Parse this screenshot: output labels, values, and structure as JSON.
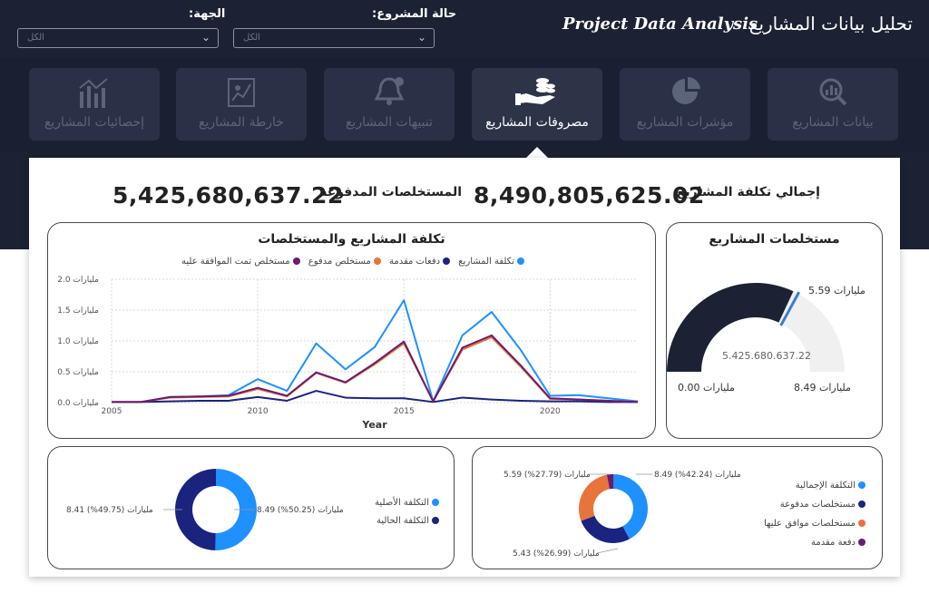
{
  "header": {
    "title_ar": "تحليل بيانات المشاريع",
    "title_en": "Project Data Analysis",
    "filters": [
      {
        "label": "حالة المشروع:",
        "value": "الكل"
      },
      {
        "label": "الجهة:",
        "value": "الكل"
      }
    ]
  },
  "nav": {
    "items": [
      {
        "label": "بيانات المشاريع",
        "icon": "magnifier-chart-icon",
        "active": false
      },
      {
        "label": "مؤشرات المشاريع",
        "icon": "pie-chart-icon",
        "active": false
      },
      {
        "label": "مصروفات المشاريع",
        "icon": "hand-coins-icon",
        "active": true
      },
      {
        "label": "تنبيهات المشاريع",
        "icon": "bell-icon",
        "active": false
      },
      {
        "label": "خارطة المشاريع",
        "icon": "map-icon",
        "active": false
      },
      {
        "label": "إحصائيات المشاريع",
        "icon": "statistics-icon",
        "active": false
      }
    ]
  },
  "kpis": {
    "total_cost_label": "إجمالي تكلفة المشاريع",
    "total_cost_value": "8,490,805,625.02",
    "paid_label": "المستخلصات المدفوعة",
    "paid_value": "5,425,680,637.22"
  },
  "line_card": {
    "title": "تكلفة المشاريع والمستخلصات"
  },
  "gauge_card": {
    "title": "مستخلصات المشاريع",
    "value_text": "5.425.680.637.22",
    "min_label": "0.00 مليارات",
    "max_label": "8.49 مليارات",
    "target_label": "5.59 مليارات"
  },
  "colors": {
    "cost": "#1e90ff",
    "advance": "#1a237e",
    "paid": "#e8743b",
    "approved": "#6a1b6e",
    "dark": "#1c2234"
  },
  "chart_data": [
    {
      "type": "line",
      "title": "تكلفة المشاريع والمستخلصات",
      "xlabel": "Year",
      "ylabel": "",
      "x": [
        2005,
        2006,
        2007,
        2008,
        2009,
        2010,
        2011,
        2012,
        2013,
        2014,
        2015,
        2016,
        2017,
        2018,
        2019,
        2020,
        2021,
        2022,
        2023
      ],
      "xticks": [
        "2005",
        "2010",
        "2015",
        "2020"
      ],
      "yticks": [
        "0.0 مليارات",
        "0.5 مليارات",
        "1.0 مليارات",
        "1.5 مليارات",
        "2.0 مليارات"
      ],
      "ylim": [
        0,
        2.0
      ],
      "grid": true,
      "legend_position": "top",
      "series": [
        {
          "name": "تكلفة المشاريع",
          "color": "#1e90ff",
          "values": [
            0.01,
            0.01,
            0.09,
            0.1,
            0.12,
            0.38,
            0.19,
            0.96,
            0.54,
            0.9,
            1.66,
            0.02,
            1.09,
            1.47,
            0.85,
            0.11,
            0.12,
            0.07,
            0.02
          ]
        },
        {
          "name": "دفعات مقدمة",
          "color": "#1a237e",
          "values": [
            0.01,
            0.01,
            0.02,
            0.03,
            0.03,
            0.09,
            0.03,
            0.19,
            0.08,
            0.07,
            0.07,
            0.01,
            0.08,
            0.05,
            0.03,
            0.02,
            0.02,
            0.01,
            0.01
          ]
        },
        {
          "name": "مستخلص مدفوع",
          "color": "#e8743b",
          "values": [
            0.01,
            0.01,
            0.08,
            0.09,
            0.1,
            0.22,
            0.1,
            0.48,
            0.32,
            0.62,
            0.96,
            0.02,
            0.86,
            1.06,
            0.58,
            0.06,
            0.05,
            0.03,
            0.01
          ]
        },
        {
          "name": "مستخلص تمت الموافقة عليه",
          "color": "#6a1b6e",
          "values": [
            0.01,
            0.01,
            0.09,
            0.1,
            0.11,
            0.24,
            0.11,
            0.49,
            0.33,
            0.64,
            0.99,
            0.02,
            0.89,
            1.09,
            0.6,
            0.07,
            0.05,
            0.03,
            0.01
          ]
        }
      ]
    },
    {
      "type": "pie",
      "subtype": "donut",
      "legend_position": "right",
      "slices": [
        {
          "name": "التكلفة الأصلية",
          "value": 8.49,
          "label": "8.49 مليارات (50.25%)",
          "color": "#1e90ff"
        },
        {
          "name": "التكلفة الحالية",
          "value": 8.41,
          "label": "8.41 مليارات (49.75%)",
          "color": "#1a237e"
        }
      ]
    },
    {
      "type": "pie",
      "subtype": "donut",
      "legend_position": "right",
      "slices": [
        {
          "name": "التكلفة الإجمالية",
          "value": 8.49,
          "label": "8.49 مليارات (42.24%)",
          "color": "#1e90ff"
        },
        {
          "name": "مستخلصات مدفوعة",
          "value": 5.43,
          "label": "5.43 مليارات (26.99%)",
          "color": "#1a237e"
        },
        {
          "name": "مستخلصات موافق عليها",
          "value": 5.59,
          "label": "5.59 مليارات (27.79%)",
          "color": "#e8743b"
        },
        {
          "name": "دفعة مقدمة",
          "value": 0.6,
          "label": "",
          "color": "#6a1b6e"
        }
      ]
    }
  ]
}
